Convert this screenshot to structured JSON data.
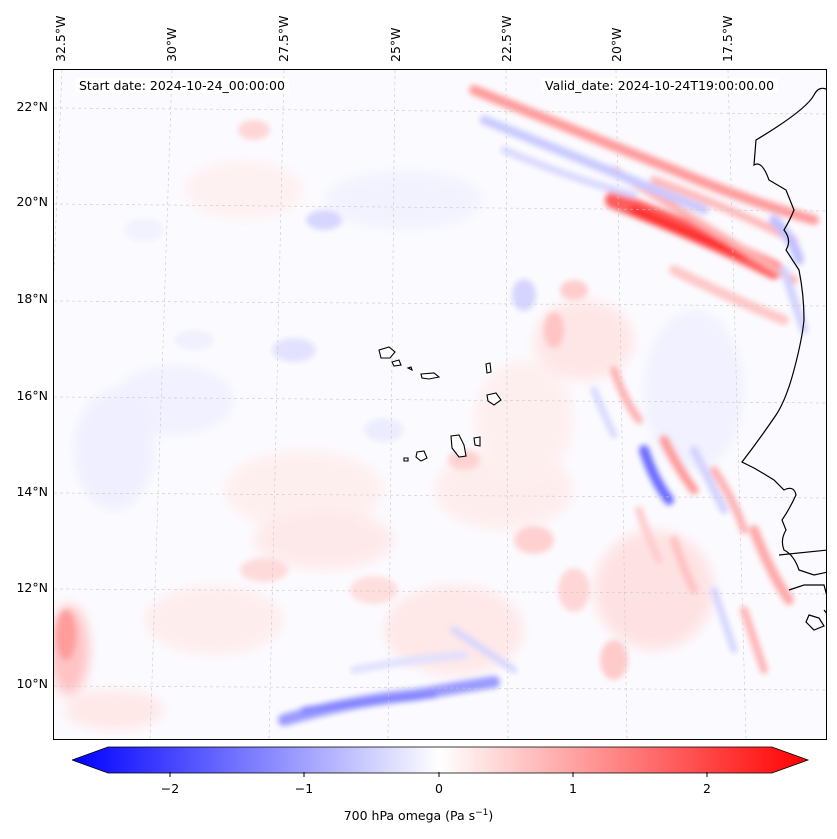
{
  "map": {
    "lon_labels": [
      "32.5°W",
      "30°W",
      "27.5°W",
      "25°W",
      "22.5°W",
      "20°W",
      "17.5°W"
    ],
    "lat_labels": [
      "22°N",
      "20°N",
      "18°N",
      "16°N",
      "14°N",
      "12°N",
      "10°N"
    ],
    "start_date": "Start date: 2024-10-24_00:00:00",
    "valid_date": "Valid_date: 2024-10-24T19:00:00.00",
    "extent": {
      "lon_min": -33.0,
      "lon_max": -16.3,
      "lat_min": 8.9,
      "lat_max": 22.8
    },
    "gridlines": true,
    "colors": {
      "negative": "#0000ff",
      "zero": "#ffffff",
      "positive": "#ff0000",
      "coastline": "#000000"
    }
  },
  "colorbar": {
    "ticks": [
      "−2",
      "−1",
      "0",
      "1",
      "2"
    ],
    "tick_values": [
      -2,
      -1,
      0,
      1,
      2
    ],
    "range": [
      -2.5,
      2.5
    ],
    "label_main": "700 hPa omega (Pa s",
    "label_sup": "−1",
    "label_end": ")"
  }
}
